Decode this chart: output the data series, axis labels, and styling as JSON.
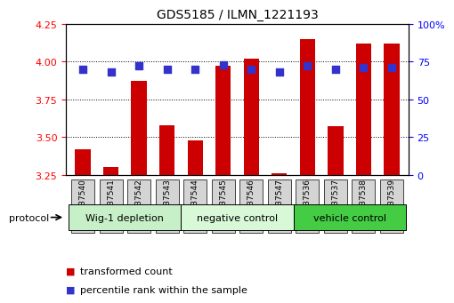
{
  "title": "GDS5185 / ILMN_1221193",
  "samples": [
    "GSM737540",
    "GSM737541",
    "GSM737542",
    "GSM737543",
    "GSM737544",
    "GSM737545",
    "GSM737546",
    "GSM737547",
    "GSM737536",
    "GSM737537",
    "GSM737538",
    "GSM737539"
  ],
  "transformed_counts": [
    3.42,
    3.3,
    3.87,
    3.58,
    3.48,
    3.97,
    4.02,
    3.26,
    4.15,
    3.57,
    4.12,
    4.12
  ],
  "percentile_ranks": [
    70,
    68,
    72,
    70,
    70,
    73,
    70,
    68,
    72,
    70,
    71,
    71
  ],
  "groups": [
    {
      "label": "Wig-1 depletion",
      "start": 0,
      "end": 3
    },
    {
      "label": "negative control",
      "start": 4,
      "end": 7
    },
    {
      "label": "vehicle control",
      "start": 8,
      "end": 11
    }
  ],
  "group_colors": [
    "#c8f0c8",
    "#d8f8d8",
    "#44cc44"
  ],
  "ylim_left": [
    3.25,
    4.25
  ],
  "ylim_right": [
    0,
    100
  ],
  "yticks_left": [
    3.25,
    3.5,
    3.75,
    4.0,
    4.25
  ],
  "yticks_right": [
    0,
    25,
    50,
    75,
    100
  ],
  "bar_color": "#cc0000",
  "dot_color": "#3333cc",
  "bar_width": 0.55,
  "dot_size": 35,
  "grid_color": "black",
  "grid_style": "dotted",
  "bg_color": "white",
  "plot_bg": "white",
  "legend_red_label": "transformed count",
  "legend_blue_label": "percentile rank within the sample",
  "protocol_label": "protocol",
  "tick_label_bg": "#d4d4d4",
  "title_fontsize": 10
}
